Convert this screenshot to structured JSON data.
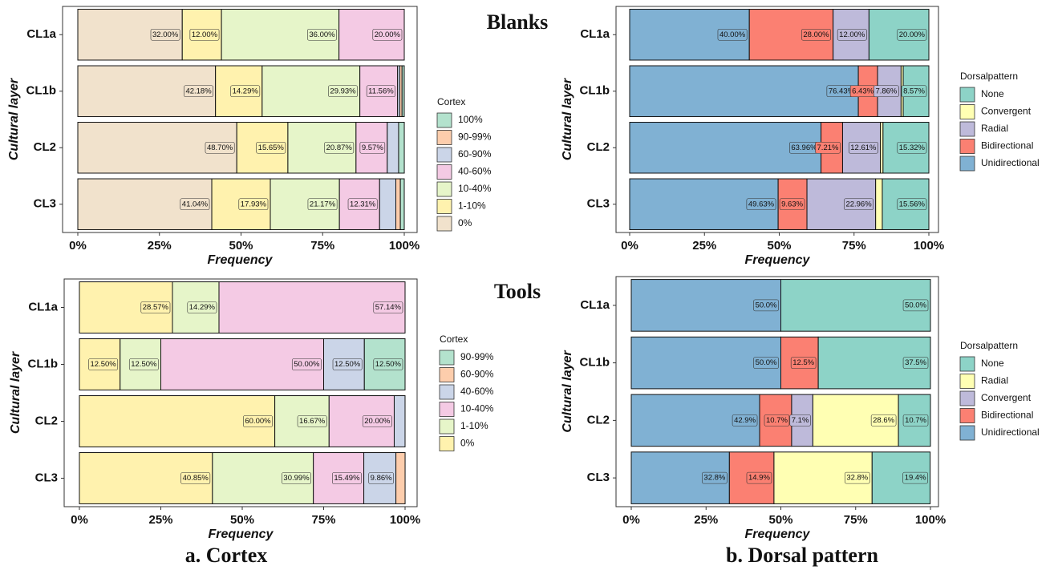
{
  "row_labels": [
    "Blanks",
    "Tools"
  ],
  "captions": [
    "a. Cortex",
    "b. Dorsal pattern"
  ],
  "chart_data": [
    {
      "type": "stacked-barh",
      "xlabel": "Frequency",
      "ylabel": "Cultural layer",
      "legend_title": "Cortex",
      "grid": false,
      "categories": [
        "CL1a",
        "CL1b",
        "CL2",
        "CL3"
      ],
      "xlim": [
        0,
        100
      ],
      "xticks": [
        {
          "value": 0,
          "label": "0%"
        },
        {
          "value": 25,
          "label": "25%"
        },
        {
          "value": 50,
          "label": "50%"
        },
        {
          "value": 75,
          "label": "75%"
        },
        {
          "value": 100,
          "label": "100%"
        }
      ],
      "series": [
        {
          "name": "0%",
          "color": "#F1E2CC",
          "values": [
            32.0,
            42.18,
            48.7,
            41.04
          ],
          "value_labels": [
            "32.00%",
            "42.18%",
            "48.70%",
            "41.04%"
          ]
        },
        {
          "name": "1-10%",
          "color": "#FFF2AE",
          "values": [
            12.0,
            14.29,
            15.65,
            17.93
          ],
          "value_labels": [
            "12.00%",
            "14.29%",
            "15.65%",
            "17.93%"
          ]
        },
        {
          "name": "10-40%",
          "color": "#E6F5C9",
          "values": [
            36.0,
            29.93,
            20.87,
            21.17
          ],
          "value_labels": [
            "36.00%",
            "29.93%",
            "20.87%",
            "21.17%"
          ]
        },
        {
          "name": "40-60%",
          "color": "#F4CAE4",
          "values": [
            20.0,
            11.56,
            9.57,
            12.31
          ],
          "value_labels": [
            "20.00%",
            "11.56%",
            "9.57%",
            "12.31%"
          ]
        },
        {
          "name": "60-90%",
          "color": "#CBD5E8",
          "values": [
            0,
            0.68,
            3.48,
            4.97
          ],
          "value_labels": [
            null,
            null,
            null,
            null
          ]
        },
        {
          "name": "90-99%",
          "color": "#FDCDAC",
          "values": [
            0,
            0.68,
            0,
            1.38
          ],
          "value_labels": [
            null,
            null,
            null,
            null
          ]
        },
        {
          "name": "100%",
          "color": "#B3E2CD",
          "values": [
            0,
            0.68,
            1.74,
            1.2
          ],
          "value_labels": [
            null,
            null,
            null,
            null
          ]
        }
      ]
    },
    {
      "type": "stacked-barh",
      "xlabel": "Frequency",
      "ylabel": "Cultural layer",
      "legend_title": "Dorsalpattern",
      "grid": false,
      "categories": [
        "CL1a",
        "CL1b",
        "CL2",
        "CL3"
      ],
      "xlim": [
        0,
        100
      ],
      "xticks": [
        {
          "value": 0,
          "label": "0%"
        },
        {
          "value": 25,
          "label": "25%"
        },
        {
          "value": 50,
          "label": "50%"
        },
        {
          "value": 75,
          "label": "75%"
        },
        {
          "value": 100,
          "label": "100%"
        }
      ],
      "series": [
        {
          "name": "Unidirectional",
          "color": "#80B1D3",
          "values": [
            40.0,
            76.43,
            63.96,
            49.63
          ],
          "value_labels": [
            "40.00%",
            "76.43%",
            "63.96%",
            "49.63%"
          ]
        },
        {
          "name": "Bidirectional",
          "color": "#FB8072",
          "values": [
            28.0,
            6.43,
            7.21,
            9.63
          ],
          "value_labels": [
            "28.00%",
            "6.43%",
            "7.21%",
            "9.63%"
          ]
        },
        {
          "name": "Radial",
          "color": "#BEBADA",
          "values": [
            12.0,
            7.86,
            12.61,
            22.96
          ],
          "value_labels": [
            "12.00%",
            "7.86%",
            "12.61%",
            "22.96%"
          ]
        },
        {
          "name": "Convergent",
          "color": "#FFFFB3",
          "values": [
            0,
            0.71,
            0.9,
            2.22
          ],
          "value_labels": [
            null,
            null,
            null,
            null
          ]
        },
        {
          "name": "None",
          "color": "#8DD3C7",
          "values": [
            20.0,
            8.57,
            15.32,
            15.56
          ],
          "value_labels": [
            "20.00%",
            "8.57%",
            "15.32%",
            "15.56%"
          ]
        }
      ]
    },
    {
      "type": "stacked-barh",
      "xlabel": "Frequency",
      "ylabel": "Cultural layer",
      "legend_title": "Cortex",
      "grid": false,
      "categories": [
        "CL1a",
        "CL1b",
        "CL2",
        "CL3"
      ],
      "xlim": [
        0,
        100
      ],
      "xticks": [
        {
          "value": 0,
          "label": "0%"
        },
        {
          "value": 25,
          "label": "25%"
        },
        {
          "value": 50,
          "label": "50%"
        },
        {
          "value": 75,
          "label": "75%"
        },
        {
          "value": 100,
          "label": "100%"
        }
      ],
      "series": [
        {
          "name": "0%",
          "color": "#FFF2AE",
          "values": [
            28.57,
            12.5,
            60.0,
            40.85
          ],
          "value_labels": [
            "28.57%",
            "12.50%",
            "60.00%",
            "40.85%"
          ]
        },
        {
          "name": "1-10%",
          "color": "#E6F5C9",
          "values": [
            14.29,
            12.5,
            16.67,
            30.99
          ],
          "value_labels": [
            "14.29%",
            "12.50%",
            "16.67%",
            "30.99%"
          ]
        },
        {
          "name": "10-40%",
          "color": "#F4CAE4",
          "values": [
            57.14,
            50.0,
            20.0,
            15.49
          ],
          "value_labels": [
            "57.14%",
            "50.00%",
            "20.00%",
            "15.49%"
          ]
        },
        {
          "name": "40-60%",
          "color": "#CBD5E8",
          "values": [
            0,
            12.5,
            3.33,
            9.86
          ],
          "value_labels": [
            null,
            "12.50%",
            null,
            "9.86%"
          ]
        },
        {
          "name": "60-90%",
          "color": "#FDCDAC",
          "values": [
            0,
            0,
            0,
            2.82
          ],
          "value_labels": [
            null,
            null,
            null,
            null
          ]
        },
        {
          "name": "90-99%",
          "color": "#B3E2CD",
          "values": [
            0,
            12.5,
            0,
            0
          ],
          "value_labels": [
            null,
            "12.50%",
            null,
            null
          ]
        }
      ]
    },
    {
      "type": "stacked-barh",
      "xlabel": "Frequency",
      "ylabel": "Cultural layer",
      "legend_title": "Dorsalpattern",
      "grid": false,
      "categories": [
        "CL1a",
        "CL1b",
        "CL2",
        "CL3"
      ],
      "xlim": [
        0,
        100
      ],
      "xticks": [
        {
          "value": 0,
          "label": "0%"
        },
        {
          "value": 25,
          "label": "25%"
        },
        {
          "value": 50,
          "label": "50%"
        },
        {
          "value": 75,
          "label": "75%"
        },
        {
          "value": 100,
          "label": "100%"
        }
      ],
      "series": [
        {
          "name": "Unidirectional",
          "color": "#80B1D3",
          "values": [
            50.0,
            50.0,
            42.9,
            32.8
          ],
          "value_labels": [
            "50.0%",
            "50.0%",
            "42.9%",
            "32.8%"
          ]
        },
        {
          "name": "Bidirectional",
          "color": "#FB8072",
          "values": [
            0,
            12.5,
            10.7,
            14.9
          ],
          "value_labels": [
            null,
            "12.5%",
            "10.7%",
            "14.9%"
          ]
        },
        {
          "name": "Convergent",
          "color": "#BEBADA",
          "values": [
            0,
            0,
            7.1,
            0
          ],
          "value_labels": [
            null,
            null,
            "7.1%",
            null
          ]
        },
        {
          "name": "Radial",
          "color": "#FFFFB3",
          "values": [
            0,
            0,
            28.6,
            32.8
          ],
          "value_labels": [
            null,
            null,
            "28.6%",
            "32.8%"
          ]
        },
        {
          "name": "None",
          "color": "#8DD3C7",
          "values": [
            50.0,
            37.5,
            10.7,
            19.4
          ],
          "value_labels": [
            "50.0%",
            "37.5%",
            "10.7%",
            "19.4%"
          ]
        }
      ]
    }
  ]
}
